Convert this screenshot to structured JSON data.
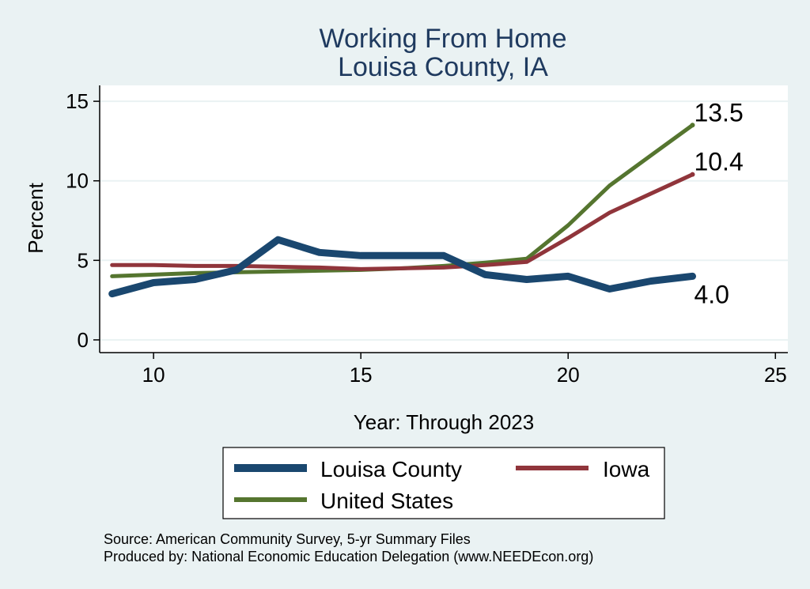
{
  "chart_data": {
    "type": "line",
    "title": [
      "Working From Home",
      "Louisa County, IA"
    ],
    "xlabel": "Year: Through 2023",
    "ylabel": "Percent",
    "xlim": [
      8.7,
      25.3
    ],
    "ylim": [
      -0.8,
      16
    ],
    "xticks": [
      10,
      15,
      20,
      25
    ],
    "yticks": [
      0,
      5,
      10,
      15
    ],
    "grid": true,
    "legend_position": "bottom",
    "x": [
      9,
      10,
      11,
      12,
      13,
      14,
      15,
      16,
      17,
      18,
      19,
      20,
      21,
      22,
      23
    ],
    "series": [
      {
        "name": "Louisa County",
        "color": "#1a476f",
        "values": [
          2.9,
          3.6,
          3.8,
          4.4,
          6.3,
          5.5,
          5.3,
          5.3,
          5.3,
          4.1,
          3.8,
          4.0,
          3.2,
          3.7,
          4.0
        ],
        "end_label": "4.0"
      },
      {
        "name": "Iowa",
        "color": "#90353b",
        "values": [
          4.7,
          4.7,
          4.65,
          4.65,
          4.6,
          4.55,
          4.45,
          4.5,
          4.55,
          4.7,
          4.9,
          6.4,
          8.0,
          9.2,
          10.4
        ],
        "end_label": "10.4"
      },
      {
        "name": "United States",
        "color": "#55752f",
        "values": [
          4.0,
          4.1,
          4.2,
          4.25,
          4.3,
          4.35,
          4.4,
          4.5,
          4.65,
          4.85,
          5.1,
          7.2,
          9.7,
          11.6,
          13.5
        ],
        "end_label": "13.5"
      }
    ],
    "notes": [
      "Source: American Community Survey, 5-yr Summary Files",
      "Produced by: National Economic Education Delegation (www.NEEDEcon.org)"
    ]
  }
}
